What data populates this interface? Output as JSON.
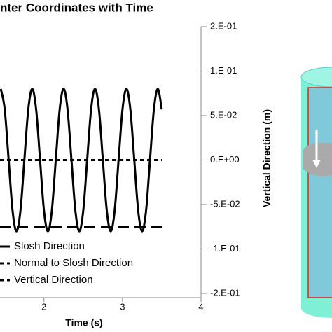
{
  "chart_data": {
    "type": "line",
    "title": "nter Coordinates with Time",
    "x_label": "Time (s)",
    "y_label": "Vertical Direction (m)",
    "xlim": [
      1.44,
      4
    ],
    "xticks": [
      2,
      3,
      4
    ],
    "ylim": [
      -0.15,
      0.15
    ],
    "yticks": [
      {
        "value": 0.15,
        "label": "2.E-01"
      },
      {
        "value": 0.1,
        "label": "1.E-01"
      },
      {
        "value": 0.05,
        "label": "5.E-02"
      },
      {
        "value": 0,
        "label": "0.E+00"
      },
      {
        "value": -0.05,
        "label": "-5.E-02"
      },
      {
        "value": -0.1,
        "label": "-1.E-01"
      },
      {
        "value": -0.15,
        "label": "-2.E-01"
      }
    ],
    "series": [
      {
        "name": "Slosh Direction",
        "color": "#000000",
        "dash": "solid",
        "x": [
          1.45,
          1.5,
          1.55,
          1.6,
          1.65,
          1.7,
          1.75,
          1.8,
          1.85,
          1.9,
          1.95,
          2.0,
          2.05,
          2.1,
          2.15,
          2.2,
          2.25,
          2.3,
          2.35,
          2.4,
          2.45,
          2.5,
          2.55,
          2.6,
          2.65,
          2.7,
          2.75,
          2.8,
          2.85,
          2.9,
          2.95,
          3.0,
          3.05,
          3.1,
          3.15,
          3.2,
          3.25,
          3.3,
          3.35,
          3.4,
          3.45,
          3.5
        ],
        "values": [
          0.08,
          0.057,
          0,
          -0.057,
          -0.08,
          -0.057,
          0,
          0.057,
          0.08,
          0.057,
          0,
          -0.057,
          -0.08,
          -0.057,
          0,
          0.057,
          0.08,
          0.057,
          0,
          -0.057,
          -0.08,
          -0.057,
          0,
          0.057,
          0.08,
          0.057,
          0,
          -0.057,
          -0.08,
          -0.057,
          0,
          0.057,
          0.08,
          0.057,
          0,
          -0.057,
          -0.08,
          -0.057,
          0,
          0.057,
          0.08,
          0.057
        ]
      },
      {
        "name": "Normal to Slosh Direction",
        "color": "#000000",
        "dash": "dashed",
        "x": [
          1.44,
          3.5
        ],
        "values": [
          0,
          0
        ]
      },
      {
        "name": "Vertical Direction",
        "color": "#000000",
        "dash": "long-dashed",
        "x": [
          1.44,
          3.52
        ],
        "values": [
          -0.075,
          -0.075
        ]
      }
    ]
  }
}
